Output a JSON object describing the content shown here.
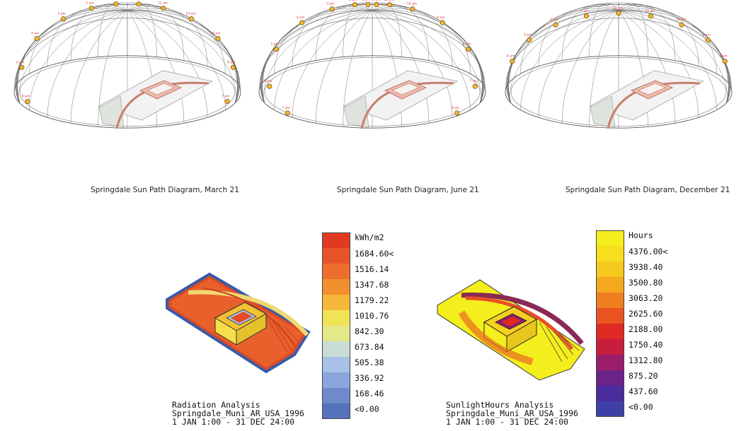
{
  "sunpath_panels": [
    {
      "caption": "Springdale Sun Path Diagram, March 21",
      "hour_labels": [
        "7 am",
        "8 am",
        "9 am",
        "10 am",
        "11 am",
        "12 pm",
        "1 pm",
        "2 pm",
        "3 pm",
        "4 pm",
        "5 pm",
        "6 pm"
      ]
    },
    {
      "caption": "Springdale Sun Path Diagram, June 21",
      "hour_labels": [
        "6 am",
        "7 am",
        "8 am",
        "9 am",
        "10 am",
        "11 am",
        "12 pm",
        "1 pm",
        "2 pm",
        "3 pm",
        "4 pm",
        "5 pm",
        "6 pm",
        "7 pm"
      ]
    },
    {
      "caption": "Springdale Sun Path Diagram, December 21",
      "hour_labels": [
        "8 am",
        "9 am",
        "10 am",
        "11 am",
        "12 pm",
        "1 pm",
        "2 pm",
        "3 pm",
        "4 pm"
      ]
    }
  ],
  "radiation": {
    "title_lines": [
      "Radiation Analysis",
      "Springdale_Muni_AR_USA_1996",
      "1 JAN 1:00 - 31 DEC 24:00"
    ],
    "unit": "kWh/m2",
    "labels": [
      "1684.60<",
      "1516.14",
      "1347.68",
      "1179.22",
      "1010.76",
      "842.30",
      "673.84",
      "505.38",
      "336.92",
      "168.46",
      "<0.00"
    ],
    "colors": [
      "#e23a22",
      "#e8542a",
      "#ee6e2d",
      "#f2902f",
      "#f5b83a",
      "#f1e356",
      "#e3e889",
      "#c9dcd6",
      "#a8c1e6",
      "#8aa6dc",
      "#6f8acb",
      "#5572bb"
    ]
  },
  "sunlight": {
    "title_lines": [
      "SunlightHours Analysis",
      "Springdale_Muni_AR_USA_1996",
      "1 JAN 1:00 - 31 DEC 24:00"
    ],
    "unit": "Hours",
    "labels": [
      "4376.00<",
      "3938.40",
      "3500.80",
      "3063.20",
      "2625.60",
      "2188.00",
      "1750.40",
      "1312.80",
      "875.20",
      "437.60",
      "<0.00"
    ],
    "colors": [
      "#f4ee1c",
      "#f6e01e",
      "#f6c81e",
      "#f4a81e",
      "#ef7e20",
      "#ea5422",
      "#e02a24",
      "#c81e3e",
      "#9a1e6a",
      "#6b2388",
      "#4a2c9c",
      "#3f3fa8"
    ]
  }
}
